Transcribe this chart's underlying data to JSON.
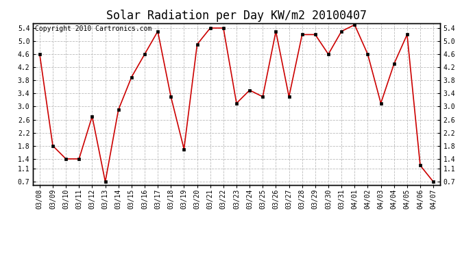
{
  "title": "Solar Radiation per Day KW/m2 20100407",
  "copyright": "Copyright 2010 Cartronics.com",
  "labels": [
    "03/08",
    "03/09",
    "03/10",
    "03/11",
    "03/12",
    "03/13",
    "03/14",
    "03/15",
    "03/16",
    "03/17",
    "03/18",
    "03/19",
    "03/20",
    "03/21",
    "03/22",
    "03/23",
    "03/24",
    "03/25",
    "03/26",
    "03/27",
    "03/28",
    "03/29",
    "03/30",
    "03/31",
    "04/01",
    "04/02",
    "04/03",
    "04/04",
    "04/05",
    "04/06",
    "04/07"
  ],
  "values": [
    4.6,
    1.8,
    1.4,
    1.4,
    2.7,
    0.7,
    2.9,
    3.9,
    4.6,
    5.3,
    3.3,
    1.7,
    4.9,
    5.4,
    5.4,
    3.1,
    3.5,
    3.3,
    5.3,
    3.3,
    5.2,
    5.2,
    4.6,
    5.3,
    5.5,
    4.6,
    3.1,
    4.3,
    5.2,
    1.2,
    0.7
  ],
  "line_color": "#cc0000",
  "marker_color": "#000000",
  "background_color": "#ffffff",
  "grid_color": "#bbbbbb",
  "ylim": [
    0.6,
    5.55
  ],
  "yticks": [
    0.7,
    1.1,
    1.4,
    1.8,
    2.2,
    2.6,
    3.0,
    3.4,
    3.8,
    4.2,
    4.6,
    5.0,
    5.4
  ],
  "title_fontsize": 12,
  "copyright_fontsize": 7,
  "tick_fontsize": 7,
  "ytick_fontsize": 7
}
